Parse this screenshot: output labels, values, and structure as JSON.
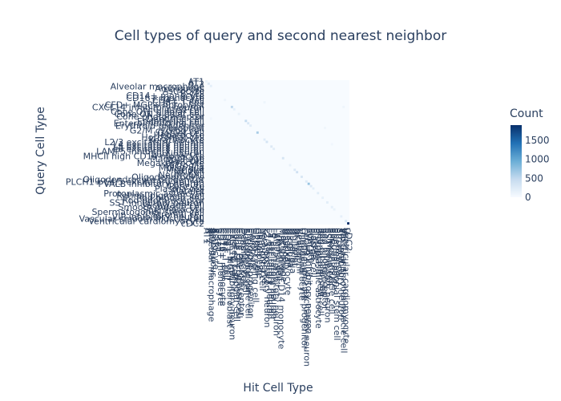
{
  "chart_data": {
    "type": "heatmap",
    "title": "Cell types of query and second nearest neighbor",
    "xlabel": "Hit Cell Type",
    "ylabel": "Query Cell Type",
    "colorbar": {
      "title": "Count",
      "ticks": [
        0,
        500,
        1000,
        1500
      ],
      "range": [
        0,
        1900
      ],
      "colors": [
        "#f7fbff",
        "#c6dbef",
        "#6baed6",
        "#2171b5",
        "#08306b"
      ]
    },
    "categories": [
      "AT1",
      "AT2",
      "Alveolar macrophage",
      "Ambiguous",
      "Astrocyte",
      "B cell",
      "CD14+ monocyte",
      "CD16+ monocyte",
      "CD4+ T cell",
      "CD8+ T cell",
      "CFD+ MGP+ fibroblast",
      "CXCL14 inhibitory neuron",
      "Ciliated cell",
      "Cone OFF bipolar cell",
      "Cone ON bipolar cell",
      "Cone photoreceptor",
      "Dendritic cell",
      "Endothelial cell",
      "Enteroendocrine cell",
      "Erythroid progenitor",
      "Fibroblast",
      "G2/M cycling cell",
      "Goblet cell",
      "Hepatocyte",
      "Horizontal cell",
      "Keratinocyte",
      "L2/3 excitatory neuron",
      "L4 excitatory neuron",
      "L5 excitatory neuron",
      "L6 excitatory neuron",
      "LAMP5 inhibitory neuron",
      "Luminal cell",
      "MHCII high CD14 monocyte",
      "Macrophage",
      "Mast cell",
      "Megakaryocyte",
      "Microglia",
      "Muller glia",
      "Multiplet",
      "NK cell",
      "Neutrophil",
      "Oligodendrocyte",
      "Oligodendrocyte progenitor",
      "PLCH1+ L4/5 excitatory neuron",
      "PVALB inhibitory neuron",
      "Pericyte",
      "Plasma cell",
      "Platelet",
      "Protoplasmic astrocyte",
      "Retinal pigment cell",
      "Rod bipolar cell",
      "Rod photoreceptor",
      "SST inhibitory neuron",
      "Schwann cell",
      "Smooth muscle cell",
      "Spermatocyte",
      "Spermatogonial stem cell",
      "Stromal cell",
      "VIP inhibitory neuron",
      "Vascular smooth muscle cell",
      "Ventricular cardiomyocyte",
      "cDC2"
    ],
    "cells": [
      {
        "x": "AT1",
        "y": "AT1",
        "value": 120
      },
      {
        "x": "AT2",
        "y": "AT2",
        "value": 260
      },
      {
        "x": "Alveolar macrophage",
        "y": "Alveolar macrophage",
        "value": 180
      },
      {
        "x": "CD4+ T cell",
        "y": "CD4+ T cell",
        "value": 90
      },
      {
        "x": "CXCL14 inhibitory neuron",
        "y": "CXCL14 inhibitory neuron",
        "value": 520
      },
      {
        "x": "Ciliated cell",
        "y": "Ciliated cell",
        "value": 160
      },
      {
        "x": "Cone ON bipolar cell",
        "y": "Cone ON bipolar cell",
        "value": 140
      },
      {
        "x": "Endothelial cell",
        "y": "Endothelial cell",
        "value": 480
      },
      {
        "x": "Enteroendocrine cell",
        "y": "Enteroendocrine cell",
        "value": 300
      },
      {
        "x": "Erythroid progenitor",
        "y": "Erythroid progenitor",
        "value": 200
      },
      {
        "x": "Goblet cell",
        "y": "Goblet cell",
        "value": 620
      },
      {
        "x": "Keratinocyte",
        "y": "Keratinocyte",
        "value": 220
      },
      {
        "x": "L2/3 excitatory neuron",
        "y": "L2/3 excitatory neuron",
        "value": 340
      },
      {
        "x": "L5 excitatory neuron",
        "y": "L5 excitatory neuron",
        "value": 260
      },
      {
        "x": "L6 excitatory neuron",
        "y": "L6 excitatory neuron",
        "value": 200
      },
      {
        "x": "Macrophage",
        "y": "Macrophage",
        "value": 320
      },
      {
        "x": "Microglia",
        "y": "Microglia",
        "value": 150
      },
      {
        "x": "Multiplet",
        "y": "Multiplet",
        "value": 260
      },
      {
        "x": "NK cell",
        "y": "NK cell",
        "value": 380
      },
      {
        "x": "Oligodendrocyte",
        "y": "Oligodendrocyte",
        "value": 300
      },
      {
        "x": "PLCH1+ L4/5 excitatory neuron",
        "y": "PLCH1+ L4/5 excitatory neuron",
        "value": 240
      },
      {
        "x": "PVALB inhibitory neuron",
        "y": "PVALB inhibitory neuron",
        "value": 720
      },
      {
        "x": "Pericyte",
        "y": "Pericyte",
        "value": 260
      },
      {
        "x": "Plasma cell",
        "y": "Plasma cell",
        "value": 180
      },
      {
        "x": "Protoplasmic astrocyte",
        "y": "Protoplasmic astrocyte",
        "value": 220
      },
      {
        "x": "Rod bipolar cell",
        "y": "Rod bipolar cell",
        "value": 160
      },
      {
        "x": "SST inhibitory neuron",
        "y": "SST inhibitory neuron",
        "value": 200
      },
      {
        "x": "Smooth muscle cell",
        "y": "Smooth muscle cell",
        "value": 180
      },
      {
        "x": "Spermatocyte",
        "y": "Spermatocyte",
        "value": 140
      },
      {
        "x": "VIP inhibitory neuron",
        "y": "VIP inhibitory neuron",
        "value": 160
      },
      {
        "x": "Ventricular cardiomyocyte",
        "y": "Ventricular cardiomyocyte",
        "value": 300
      },
      {
        "x": "cDC2",
        "y": "cDC2",
        "value": 1900
      },
      {
        "x": "Keratinocyte",
        "y": "CD8+ T cell",
        "value": 90
      },
      {
        "x": "Rod photoreceptor",
        "y": "Fibroblast",
        "value": 80
      },
      {
        "x": "Smooth muscle cell",
        "y": "L4 excitatory neuron",
        "value": 70
      },
      {
        "x": "Vascular smooth muscle cell",
        "y": "CXCL14 inhibitory neuron",
        "value": 90
      },
      {
        "x": "Alveolar macrophage",
        "y": "Dendritic cell",
        "value": 70
      }
    ]
  }
}
